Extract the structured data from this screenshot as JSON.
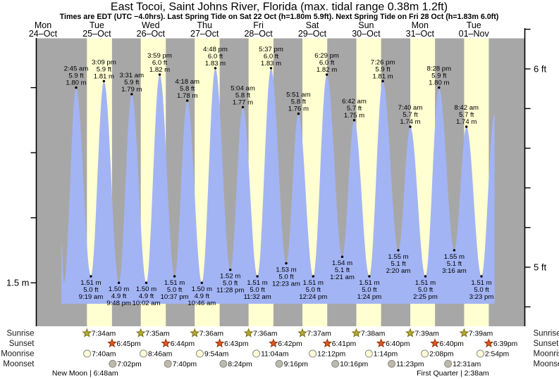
{
  "header": {
    "title": "East Tocoi, Saint Johns River, Florida (max. tidal range 0.38m 1.2ft)",
    "subtitle": "Times are EDT (UTC −4.0hrs). Last Spring Tide on Sat 22 Oct (h=1.80m 5.9ft). Next Spring Tide on Fri 28 Oct (h=1.83m 6.0ft)"
  },
  "days": [
    {
      "name": "Mon",
      "date": "24–Oct"
    },
    {
      "name": "Tue",
      "date": "25–Oct"
    },
    {
      "name": "Wed",
      "date": "26–Oct"
    },
    {
      "name": "Thu",
      "date": "27–Oct"
    },
    {
      "name": "Fri",
      "date": "28–Oct"
    },
    {
      "name": "Sat",
      "date": "29–Oct"
    },
    {
      "name": "Sun",
      "date": "30–Oct"
    },
    {
      "name": "Mon",
      "date": "31–Oct"
    },
    {
      "name": "Tue",
      "date": "01–Nov"
    }
  ],
  "axes": {
    "left_label_text": "1.5 m",
    "left_ticks_m": [
      1.5,
      1.6,
      1.7,
      1.8
    ],
    "right_labels": [
      {
        "text": "6 ft",
        "ft": 6.0
      },
      {
        "text": "5 ft",
        "ft": 5.0
      }
    ],
    "right_ticks_ft": [
      4.8,
      5.0,
      5.2,
      5.4,
      5.6,
      5.8,
      6.0,
      6.2
    ]
  },
  "rows": {
    "labels": [
      "Sunrise",
      "Sunset",
      "Moonrise",
      "Moonset"
    ]
  },
  "astro": {
    "sunrise": [
      {
        "time": "7:34am",
        "t": 31.567
      },
      {
        "time": "7:35am",
        "t": 55.583
      },
      {
        "time": "7:36am",
        "t": 79.6
      },
      {
        "time": "7:36am",
        "t": 103.6
      },
      {
        "time": "7:37am",
        "t": 127.617
      },
      {
        "time": "7:38am",
        "t": 151.633
      },
      {
        "time": "7:39am",
        "t": 175.65
      },
      {
        "time": "7:39am",
        "t": 199.65
      }
    ],
    "sunset": [
      {
        "time": "6:45pm",
        "t": 42.75
      },
      {
        "time": "6:44pm",
        "t": 66.733
      },
      {
        "time": "6:43pm",
        "t": 90.717
      },
      {
        "time": "6:42pm",
        "t": 114.7
      },
      {
        "time": "6:41pm",
        "t": 138.683
      },
      {
        "time": "6:40pm",
        "t": 162.667
      },
      {
        "time": "6:40pm",
        "t": 186.667
      },
      {
        "time": "6:39pm",
        "t": 210.65
      }
    ],
    "moonrise": [
      {
        "time": "7:40am",
        "t": 31.667
      },
      {
        "time": "8:46am",
        "t": 56.767
      },
      {
        "time": "9:54am",
        "t": 81.9
      },
      {
        "time": "11:04am",
        "t": 107.067
      },
      {
        "time": "12:12pm",
        "t": 132.2
      },
      {
        "time": "1:14pm",
        "t": 157.233
      },
      {
        "time": "2:08pm",
        "t": 182.133
      },
      {
        "time": "2:54pm",
        "t": 206.9
      }
    ],
    "moonset": [
      {
        "time": "7:02pm",
        "t": 43.033
      },
      {
        "time": "7:40pm",
        "t": 67.667
      },
      {
        "time": "8:24pm",
        "t": 92.4
      },
      {
        "time": "9:16pm",
        "t": 117.267
      },
      {
        "time": "10:16pm",
        "t": 142.267
      },
      {
        "time": "11:23pm",
        "t": 167.383
      },
      {
        "time": "12:31am",
        "t": 192.517
      }
    ],
    "phases": [
      {
        "text": "New Moon | 6:48am",
        "t": 30.8
      },
      {
        "text": "First Quarter | 2:38am",
        "t": 194.633
      }
    ]
  },
  "chart_data": {
    "type": "area",
    "title": "East Tocoi, Saint Johns River, Florida tide heights",
    "x_axis": "time, Mon 24 Oct – Wed 02 Nov (t = hours since Mon 24 Oct 00:00)",
    "y_axis": "tide height (m left, ft right)",
    "y_range_m": [
      1.43,
      1.875
    ],
    "high_tides": [
      {
        "day": "Tue 25 Oct",
        "time": "2:45 am",
        "ft": "5.9 ft",
        "m": "1.80 m",
        "t": 26.75,
        "v": 1.8
      },
      {
        "day": "Tue 25 Oct",
        "time": "3:09 pm",
        "ft": "5.9 ft",
        "m": "1.81 m",
        "t": 39.15,
        "v": 1.81
      },
      {
        "day": "Wed 26 Oct",
        "time": "3:31 am",
        "ft": "5.9 ft",
        "m": "1.79 m",
        "t": 51.52,
        "v": 1.79
      },
      {
        "day": "Wed 26 Oct",
        "time": "3:59 pm",
        "ft": "6.0 ft",
        "m": "1.82 m",
        "t": 63.98,
        "v": 1.82
      },
      {
        "day": "Thu 27 Oct",
        "time": "4:18 am",
        "ft": "5.8 ft",
        "m": "1.78 m",
        "t": 76.3,
        "v": 1.78
      },
      {
        "day": "Thu 27 Oct",
        "time": "4:48 pm",
        "ft": "6.0 ft",
        "m": "1.83 m",
        "t": 88.8,
        "v": 1.83
      },
      {
        "day": "Fri 28 Oct",
        "time": "5:04 am",
        "ft": "5.8 ft",
        "m": "1.77 m",
        "t": 101.07,
        "v": 1.77
      },
      {
        "day": "Fri 28 Oct",
        "time": "5:37 pm",
        "ft": "6.0 ft",
        "m": "1.83 m",
        "t": 113.62,
        "v": 1.83
      },
      {
        "day": "Sat 29 Oct",
        "time": "5:51 am",
        "ft": "5.8 ft",
        "m": "1.76 m",
        "t": 125.85,
        "v": 1.76
      },
      {
        "day": "Sat 29 Oct",
        "time": "6:29 pm",
        "ft": "6.0 ft",
        "m": "1.82 m",
        "t": 138.48,
        "v": 1.82
      },
      {
        "day": "Sun 30 Oct",
        "time": "6:42 am",
        "ft": "5.7 ft",
        "m": "1.75 m",
        "t": 150.7,
        "v": 1.75
      },
      {
        "day": "Sun 30 Oct",
        "time": "7:26 pm",
        "ft": "5.9 ft",
        "m": "1.81 m",
        "t": 163.43,
        "v": 1.81
      },
      {
        "day": "Mon 31 Oct",
        "time": "7:40 am",
        "ft": "5.7 ft",
        "m": "1.74 m",
        "t": 175.67,
        "v": 1.74
      },
      {
        "day": "Mon 31 Oct",
        "time": "8:28 pm",
        "ft": "5.9 ft",
        "m": "1.80 m",
        "t": 188.47,
        "v": 1.8
      },
      {
        "day": "Tue 01 Nov",
        "time": "8:42 am",
        "ft": "5.7 ft",
        "m": "1.74 m",
        "t": 200.7,
        "v": 1.74
      }
    ],
    "low_tides": [
      {
        "day": "Tue 25 Oct",
        "m": "1.51 m",
        "ft": "5.0 ft",
        "time": "9:19 am",
        "t": 33.32,
        "v": 1.51
      },
      {
        "day": "Tue 25 Oct",
        "m": "1.50 m",
        "ft": "4.9 ft",
        "time": "9:48 pm",
        "t": 45.8,
        "v": 1.5
      },
      {
        "day": "Wed 26 Oct",
        "m": "1.50 m",
        "ft": "4.9 ft",
        "time": "10:02 am",
        "t": 58.03,
        "v": 1.5
      },
      {
        "day": "Wed 26 Oct",
        "m": "1.51 m",
        "ft": "5.0 ft",
        "time": "10:37 pm",
        "t": 70.62,
        "v": 1.51
      },
      {
        "day": "Thu 27 Oct",
        "m": "1.50 m",
        "ft": "4.9 ft",
        "time": "10:46 am",
        "t": 82.77,
        "v": 1.5
      },
      {
        "day": "Thu 27 Oct",
        "m": "1.52 m",
        "ft": "5.0 ft",
        "time": "11:28 pm",
        "t": 95.47,
        "v": 1.52
      },
      {
        "day": "Fri 28 Oct",
        "m": "1.51 m",
        "ft": "5.0 ft",
        "time": "11:32 am",
        "t": 107.53,
        "v": 1.51
      },
      {
        "day": "Sat 29 Oct",
        "m": "1.53 m",
        "ft": "5.0 ft",
        "time": "12:23 am",
        "t": 120.38,
        "v": 1.53
      },
      {
        "day": "Sat 29 Oct",
        "m": "1.51 m",
        "ft": "5.0 ft",
        "time": "12:24 pm",
        "t": 132.4,
        "v": 1.51
      },
      {
        "day": "Sun 30 Oct",
        "m": "1.54 m",
        "ft": "5.1 ft",
        "time": "1:21 am",
        "t": 145.35,
        "v": 1.54
      },
      {
        "day": "Sun 30 Oct",
        "m": "1.51 m",
        "ft": "5.0 ft",
        "time": "1:24 pm",
        "t": 157.4,
        "v": 1.51
      },
      {
        "day": "Mon 31 Oct",
        "m": "1.55 m",
        "ft": "5.1 ft",
        "time": "2:20 am",
        "t": 170.33,
        "v": 1.55
      },
      {
        "day": "Mon 31 Oct",
        "m": "1.51 m",
        "ft": "5.0 ft",
        "time": "2:25 pm",
        "t": 182.42,
        "v": 1.51
      },
      {
        "day": "Tue 01 Nov",
        "m": "1.55 m",
        "ft": "5.1 ft",
        "time": "3:16 am",
        "t": 195.27,
        "v": 1.55
      },
      {
        "day": "Tue 01 Nov",
        "m": "1.51 m",
        "ft": "5.0 ft",
        "time": "3:23 pm",
        "t": 207.38,
        "v": 1.51
      }
    ],
    "curve_edges": {
      "start": {
        "t": 20.2,
        "v": 1.56
      },
      "start_low": {
        "t": 21.3,
        "v": 1.5
      },
      "end": {
        "t": 213.2,
        "v": 1.76
      }
    }
  },
  "colors": {
    "night_band": "#a7a7a7",
    "day_band": "#ffffd2",
    "tide_fill": "#a2b4f4",
    "day_text_red": "#e43a2e",
    "sunrise_star": "#b9ab2e",
    "sunrise_star_edge": "#756d15",
    "sunset_star": "#e2571e",
    "sunset_star_edge": "#8e3107",
    "moonrise_circle": "#ffffd8",
    "moonset_circle": "#bcbbaa",
    "moon_edge": "#8a8a8a"
  }
}
